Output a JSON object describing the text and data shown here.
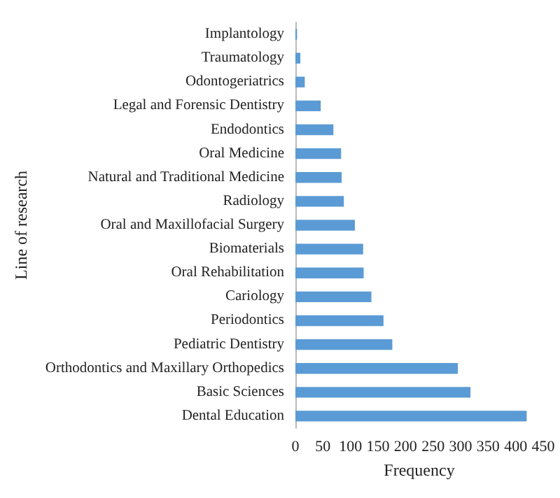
{
  "chart_data": {
    "type": "bar",
    "orientation": "horizontal",
    "xlabel": "Frequency",
    "ylabel": "Line of research",
    "categories": [
      "Implantology",
      "Traumatology",
      "Odontogeriatrics",
      "Legal and Forensic Dentistry",
      "Endodontics",
      "Oral Medicine",
      "Natural and Traditional Medicine",
      "Radiology",
      "Oral and Maxillofacial Surgery",
      "Biomaterials",
      "Oral Rehabilitation",
      "Cariology",
      "Periodontics",
      "Pediatric Dentistry",
      "Orthodontics and Maxillary Orthopedics",
      "Basic Sciences",
      "Dental Education"
    ],
    "values": [
      3,
      9,
      17,
      46,
      69,
      83,
      84,
      88,
      108,
      123,
      124,
      138,
      160,
      176,
      295,
      318,
      420
    ],
    "color": "#5b9bd5",
    "xlim": [
      0,
      450
    ],
    "xticks": [
      0,
      50,
      100,
      150,
      200,
      250,
      300,
      350,
      400,
      450
    ],
    "grid": false
  }
}
